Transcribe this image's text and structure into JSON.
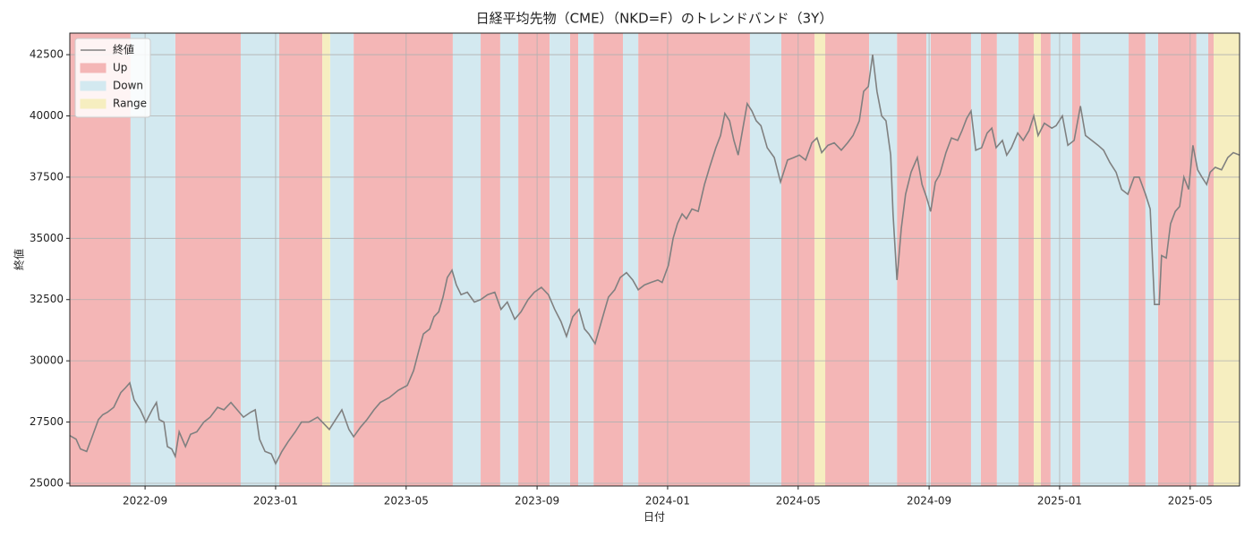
{
  "chart_data": {
    "type": "line",
    "title": "日経平均先物（CME）（NKD=F）のトレンドバンド（3Y）",
    "x_label": "日付",
    "y_label": "終値",
    "xlim": [
      2022.475,
      2025.459
    ],
    "ylim": [
      24890,
      43380
    ],
    "xticks": [
      {
        "value": 2022.667,
        "label": "2022-09"
      },
      {
        "value": 2023.0,
        "label": "2023-01"
      },
      {
        "value": 2023.333,
        "label": "2023-05"
      },
      {
        "value": 2023.667,
        "label": "2023-09"
      },
      {
        "value": 2024.0,
        "label": "2024-01"
      },
      {
        "value": 2024.333,
        "label": "2024-05"
      },
      {
        "value": 2024.667,
        "label": "2024-09"
      },
      {
        "value": 2025.0,
        "label": "2025-01"
      },
      {
        "value": 2025.333,
        "label": "2025-05"
      }
    ],
    "yticks": [
      25000,
      27500,
      30000,
      32500,
      35000,
      37500,
      40000,
      42500
    ],
    "grid": true,
    "legend": "upper left",
    "x": [
      2022.475,
      2022.491,
      2022.502,
      2022.518,
      2022.532,
      2022.548,
      2022.559,
      2022.571,
      2022.587,
      2022.605,
      2022.617,
      2022.628,
      2022.639,
      2022.655,
      2022.669,
      2022.685,
      2022.696,
      2022.703,
      2022.715,
      2022.724,
      2022.735,
      2022.744,
      2022.754,
      2022.77,
      2022.783,
      2022.799,
      2022.817,
      2022.833,
      2022.852,
      2022.868,
      2022.886,
      2022.902,
      2022.918,
      2022.936,
      2022.948,
      2022.959,
      2022.973,
      2022.989,
      2023.0,
      2023.016,
      2023.032,
      2023.05,
      2023.066,
      2023.085,
      2023.107,
      2023.119,
      2023.137,
      2023.153,
      2023.169,
      2023.187,
      2023.199,
      2023.217,
      2023.233,
      2023.251,
      2023.267,
      2023.29,
      2023.313,
      2023.336,
      2023.352,
      2023.365,
      2023.377,
      2023.393,
      2023.404,
      2023.416,
      2023.427,
      2023.438,
      2023.45,
      2023.461,
      2023.473,
      2023.489,
      2023.507,
      2023.523,
      2023.541,
      2023.559,
      2023.575,
      2023.591,
      2023.61,
      2023.626,
      2023.644,
      2023.66,
      2023.678,
      2023.696,
      2023.712,
      2023.728,
      2023.742,
      2023.758,
      2023.774,
      2023.788,
      2023.799,
      2023.815,
      2023.831,
      2023.849,
      2023.865,
      2023.879,
      2023.895,
      2023.911,
      2023.925,
      2023.941,
      2023.957,
      2023.975,
      2023.986,
      2024.002,
      2024.014,
      2024.025,
      2024.037,
      2024.048,
      2024.062,
      2024.078,
      2024.094,
      2024.107,
      2024.123,
      2024.135,
      2024.146,
      2024.158,
      2024.169,
      2024.18,
      2024.192,
      2024.203,
      2024.215,
      2024.226,
      2024.238,
      2024.254,
      2024.272,
      2024.288,
      2024.306,
      2024.322,
      2024.336,
      2024.352,
      2024.368,
      2024.381,
      2024.393,
      2024.409,
      2024.425,
      2024.443,
      2024.459,
      2024.473,
      2024.489,
      2024.5,
      2024.512,
      2024.523,
      2024.534,
      2024.546,
      2024.557,
      2024.569,
      2024.575,
      2024.585,
      2024.596,
      2024.607,
      2024.621,
      2024.637,
      2024.649,
      2024.66,
      2024.671,
      2024.683,
      2024.694,
      2024.71,
      2024.724,
      2024.74,
      2024.751,
      2024.763,
      2024.774,
      2024.786,
      2024.801,
      2024.815,
      2024.827,
      2024.838,
      2024.854,
      2024.865,
      2024.877,
      2024.893,
      2024.907,
      2024.922,
      2024.934,
      2024.945,
      2024.961,
      2024.98,
      2024.991,
      2025.007,
      2025.021,
      2025.037,
      2025.053,
      2025.066,
      2025.082,
      2025.098,
      2025.112,
      2025.128,
      2025.144,
      2025.158,
      2025.174,
      2025.19,
      2025.203,
      2025.219,
      2025.231,
      2025.242,
      2025.254,
      2025.26,
      2025.272,
      2025.283,
      2025.295,
      2025.306,
      2025.317,
      2025.329,
      2025.34,
      2025.352,
      2025.363,
      2025.375,
      2025.384,
      2025.397,
      2025.413,
      2025.429,
      2025.443,
      2025.459
    ],
    "series": [
      {
        "name": "終値",
        "color": "#808080",
        "values": [
          26950,
          26800,
          26400,
          26300,
          26900,
          27600,
          27800,
          27900,
          28100,
          28700,
          28900,
          29100,
          28400,
          28000,
          27500,
          28000,
          28300,
          27600,
          27500,
          26500,
          26400,
          26100,
          27100,
          26500,
          27000,
          27100,
          27500,
          27700,
          28100,
          28000,
          28300,
          28000,
          27700,
          27900,
          28000,
          26800,
          26300,
          26200,
          25800,
          26300,
          26700,
          27100,
          27500,
          27500,
          27700,
          27500,
          27200,
          27600,
          28000,
          27200,
          26900,
          27300,
          27600,
          28000,
          28300,
          28500,
          28800,
          29000,
          29600,
          30400,
          31100,
          31300,
          31800,
          32000,
          32600,
          33400,
          33700,
          33100,
          32700,
          32800,
          32400,
          32500,
          32700,
          32800,
          32100,
          32400,
          31700,
          32000,
          32500,
          32800,
          33000,
          32700,
          32100,
          31600,
          31000,
          31800,
          32100,
          31300,
          31100,
          30700,
          31600,
          32600,
          32900,
          33400,
          33600,
          33300,
          32900,
          33100,
          33200,
          33300,
          33200,
          33900,
          35000,
          35600,
          36000,
          35800,
          36200,
          36100,
          37200,
          37900,
          38700,
          39200,
          40100,
          39800,
          39000,
          38400,
          39500,
          40500,
          40200,
          39800,
          39600,
          38700,
          38300,
          37300,
          38200,
          38300,
          38400,
          38200,
          38900,
          39100,
          38500,
          38800,
          38900,
          38600,
          38900,
          39200,
          39800,
          41000,
          41200,
          42500,
          41000,
          40000,
          39800,
          38400,
          36000,
          33300,
          35400,
          36800,
          37700,
          38300,
          37200,
          36700,
          36100,
          37300,
          37600,
          38500,
          39100,
          39000,
          39400,
          39900,
          40200,
          38600,
          38700,
          39300,
          39500,
          38700,
          39000,
          38400,
          38700,
          39300,
          39000,
          39400,
          40000,
          39200,
          39700,
          39500,
          39600,
          40000,
          38800,
          39000,
          40400,
          39200,
          39000,
          38800,
          38600,
          38100,
          37700,
          37000,
          36800,
          37500,
          37500,
          36800,
          36200,
          32300,
          32300,
          34300,
          34200,
          35600,
          36100,
          36300,
          37500,
          37000,
          38800,
          37800,
          37500,
          37200,
          37700,
          37900,
          37800,
          38300,
          38500,
          38400
        ]
      }
    ],
    "bands": [
      {
        "name": "Up",
        "color": "#f4b6b6",
        "ranges": [
          [
            2022.475,
            2022.63
          ],
          [
            2022.744,
            2022.911
          ],
          [
            2023.009,
            2023.119
          ],
          [
            2023.199,
            2023.452
          ],
          [
            2023.523,
            2023.573
          ],
          [
            2023.619,
            2023.699
          ],
          [
            2023.751,
            2023.772
          ],
          [
            2023.811,
            2023.886
          ],
          [
            2023.925,
            2024.21
          ],
          [
            2024.29,
            2024.375
          ],
          [
            2024.402,
            2024.514
          ],
          [
            2024.585,
            2024.66
          ],
          [
            2024.671,
            2024.774
          ],
          [
            2024.799,
            2024.84
          ],
          [
            2024.895,
            2024.934
          ],
          [
            2024.952,
            2024.977
          ],
          [
            2025.032,
            2025.053
          ],
          [
            2025.176,
            2025.219
          ],
          [
            2025.251,
            2025.349
          ],
          [
            2025.379,
            2025.393
          ]
        ]
      },
      {
        "name": "Down",
        "color": "#d3e9f0",
        "ranges": [
          [
            2022.63,
            2022.744
          ],
          [
            2022.911,
            2023.009
          ],
          [
            2023.139,
            2023.199
          ],
          [
            2023.452,
            2023.523
          ],
          [
            2023.573,
            2023.619
          ],
          [
            2023.699,
            2023.751
          ],
          [
            2023.772,
            2023.811
          ],
          [
            2023.886,
            2023.925
          ],
          [
            2024.21,
            2024.29
          ],
          [
            2024.514,
            2024.585
          ],
          [
            2024.66,
            2024.671
          ],
          [
            2024.774,
            2024.799
          ],
          [
            2024.84,
            2024.895
          ],
          [
            2024.977,
            2025.032
          ],
          [
            2025.053,
            2025.176
          ],
          [
            2025.219,
            2025.251
          ],
          [
            2025.349,
            2025.379
          ]
        ]
      },
      {
        "name": "Range",
        "color": "#f6eec0",
        "ranges": [
          [
            2023.119,
            2023.139
          ],
          [
            2024.375,
            2024.402
          ],
          [
            2024.934,
            2024.952
          ],
          [
            2025.393,
            2025.459
          ]
        ]
      }
    ]
  }
}
